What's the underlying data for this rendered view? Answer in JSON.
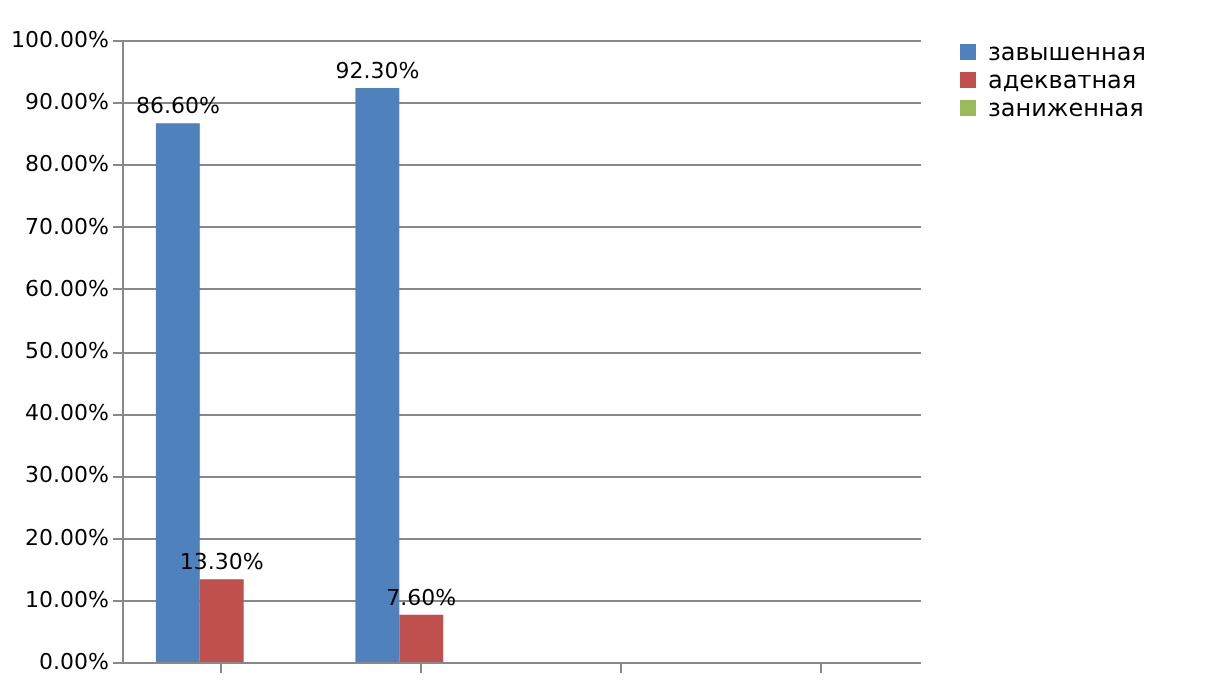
{
  "chart_data": {
    "type": "bar",
    "categories": [
      null,
      null,
      null,
      null
    ],
    "series": [
      {
        "name": "завышенная",
        "color": "#4f81bd",
        "values": [
          86.6,
          92.3,
          null,
          null
        ],
        "value_labels": [
          "86.60%",
          "92.30%",
          null,
          null
        ]
      },
      {
        "name": "адекватная",
        "color": "#c0504d",
        "values": [
          13.3,
          7.6,
          null,
          null
        ],
        "value_labels": [
          "13.30%",
          "7.60%",
          null,
          null
        ]
      },
      {
        "name": "заниженная",
        "color": "#9bbb59",
        "values": [
          null,
          null,
          null,
          null
        ]
      }
    ],
    "ylim": [
      0,
      100
    ],
    "yticks": [
      {
        "value": 0,
        "label": "0.00%"
      },
      {
        "value": 10,
        "label": "10.00%"
      },
      {
        "value": 20,
        "label": "20.00%"
      },
      {
        "value": 30,
        "label": "30.00%"
      },
      {
        "value": 40,
        "label": "40.00%"
      },
      {
        "value": 50,
        "label": "50.00%"
      },
      {
        "value": 60,
        "label": "60.00%"
      },
      {
        "value": 70,
        "label": "70.00%"
      },
      {
        "value": 80,
        "label": "80.00%"
      },
      {
        "value": 90,
        "label": "90.00%"
      },
      {
        "value": 100,
        "label": "100.00%"
      }
    ],
    "grid": "y",
    "legend": "right",
    "tick_labels": "y"
  }
}
